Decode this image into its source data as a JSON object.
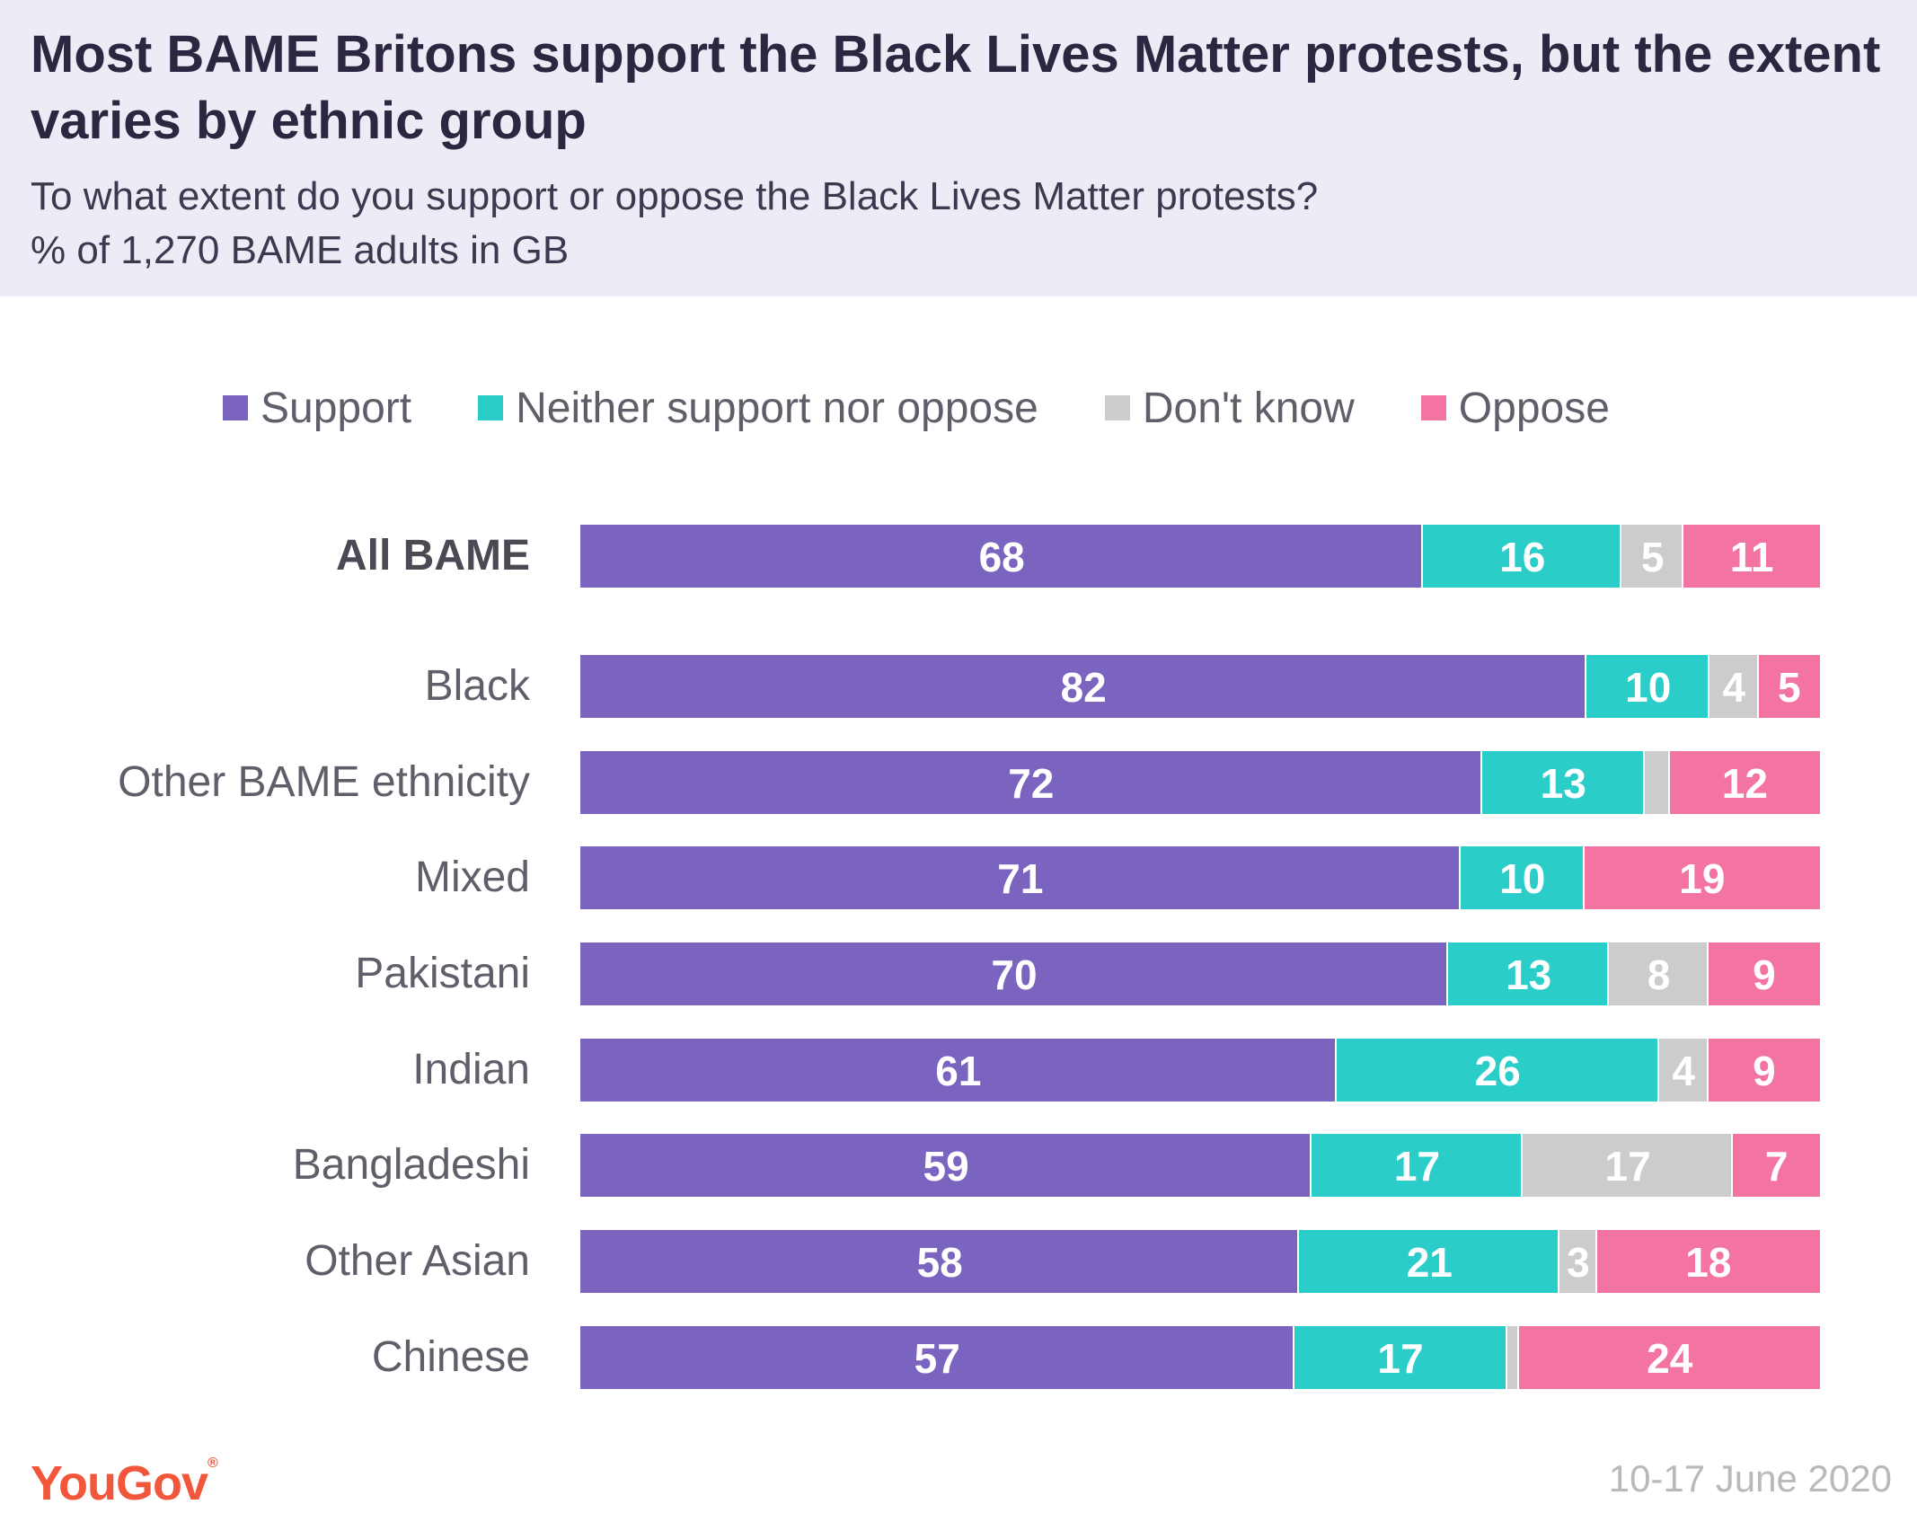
{
  "title": "Most BAME Britons support the Black Lives Matter protests, but the extent varies by ethnic group",
  "subtitle": "To what extent do you support or oppose the Black Lives Matter protests?",
  "note": "% of 1,270 BAME adults in GB",
  "brand": "YouGov",
  "date": "10-17 June 2020",
  "colors": {
    "header_bg": "#eeeaf6",
    "support": "#7b64c0",
    "neither": "#2bcdc9",
    "dont_know": "#cccccc",
    "oppose": "#f374a3",
    "brand": "#f2573b"
  },
  "chart_data": {
    "type": "bar",
    "orientation": "horizontal",
    "stacked": true,
    "legend_position": "top",
    "categories": [
      "All BAME",
      "Black",
      "Other BAME ethnicity",
      "Mixed",
      "Pakistani",
      "Indian",
      "Bangladeshi",
      "Other Asian",
      "Chinese"
    ],
    "series": [
      {
        "name": "Support",
        "color": "#7b64c0",
        "values": [
          68,
          82,
          72,
          71,
          70,
          61,
          59,
          58,
          57
        ]
      },
      {
        "name": "Neither support nor oppose",
        "color": "#2bcdc9",
        "values": [
          16,
          10,
          13,
          10,
          13,
          26,
          17,
          21,
          17
        ]
      },
      {
        "name": "Don't know",
        "color": "#cccccc",
        "values": [
          5,
          4,
          2,
          0,
          8,
          4,
          17,
          3,
          1
        ]
      },
      {
        "name": "Oppose",
        "color": "#f374a3",
        "values": [
          11,
          5,
          12,
          19,
          9,
          9,
          7,
          18,
          24
        ]
      }
    ],
    "data_labels": [
      [
        "68",
        "16",
        "5",
        "11"
      ],
      [
        "82",
        "10",
        "4",
        "5"
      ],
      [
        "72",
        "13",
        "",
        "12"
      ],
      [
        "71",
        "10",
        "",
        "19"
      ],
      [
        "70",
        "13",
        "8",
        "9"
      ],
      [
        "61",
        "26",
        "4",
        "9"
      ],
      [
        "59",
        "17",
        "17",
        "7"
      ],
      [
        "58",
        "21",
        "3",
        "18"
      ],
      [
        "57",
        "17",
        "",
        "24"
      ]
    ],
    "bold_categories": [
      "All BAME"
    ]
  }
}
